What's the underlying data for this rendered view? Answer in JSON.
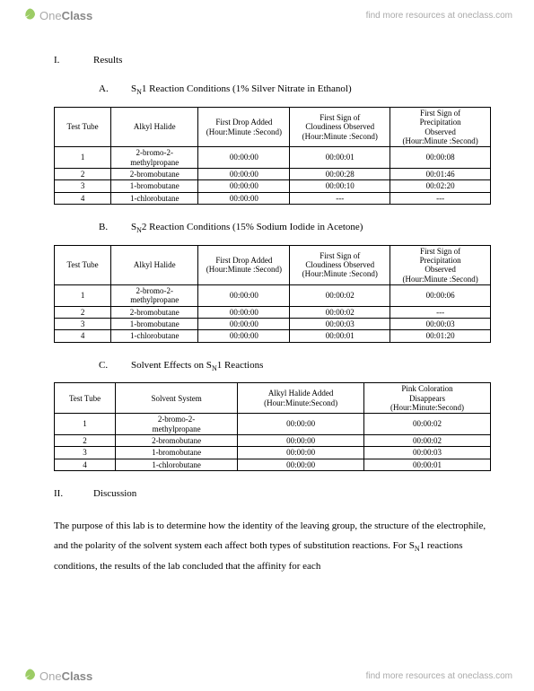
{
  "brand": {
    "name_light": "One",
    "name_bold": "Class",
    "tagline": "find more resources at oneclass.com"
  },
  "section1": {
    "marker": "I.",
    "title": "Results",
    "A": {
      "marker": "A.",
      "title": "S",
      "title_sub": "N",
      "title_rest": "1 Reaction Conditions (1% Silver Nitrate in Ethanol)",
      "headers": [
        "Test Tube",
        "Alkyl Halide",
        "First Drop Added\n(Hour:Minute :Second)",
        "First Sign of\nCloudiness Observed\n(Hour:Minute :Second)",
        "First Sign of\nPrecipitation\nObserved\n(Hour:Minute :Second)"
      ],
      "rows": [
        [
          "1",
          "2-bromo-2-\nmethylpropane",
          "00:00:00",
          "00:00:01",
          "00:00:08"
        ],
        [
          "2",
          "2-bromobutane",
          "00:00:00",
          "00:00:28",
          "00:01:46"
        ],
        [
          "3",
          "1-bromobutane",
          "00:00:00",
          "00:00:10",
          "00:02:20"
        ],
        [
          "4",
          "1-chlorobutane",
          "00:00:00",
          "---",
          "---"
        ]
      ]
    },
    "B": {
      "marker": "B.",
      "title": "S",
      "title_sub": "N",
      "title_rest": "2 Reaction Conditions (15% Sodium Iodide in Acetone)",
      "headers": [
        "Test Tube",
        "Alkyl Halide",
        "First Drop Added\n(Hour:Minute :Second)",
        "First Sign of\nCloudiness Observed\n(Hour:Minute :Second)",
        "First Sign of\nPrecipitation\nObserved\n(Hour:Minute :Second)"
      ],
      "rows": [
        [
          "1",
          "2-bromo-2-\nmethylpropane",
          "00:00:00",
          "00:00:02",
          "00:00:06"
        ],
        [
          "2",
          "2-bromobutane",
          "00:00:00",
          "00:00:02",
          "---"
        ],
        [
          "3",
          "1-bromobutane",
          "00:00:00",
          "00:00:03",
          "00:00:03"
        ],
        [
          "4",
          "1-chlorobutane",
          "00:00:00",
          "00:00:01",
          "00:01:20"
        ]
      ]
    },
    "C": {
      "marker": "C.",
      "title": "Solvent Effects on S",
      "title_sub": "N",
      "title_rest": "1 Reactions",
      "headers": [
        "Test Tube",
        "Solvent System",
        "Alkyl Halide Added\n(Hour:Minute:Second)",
        "Pink Coloration\nDisappears\n(Hour:Minute:Second)"
      ],
      "rows": [
        [
          "1",
          "2-bromo-2-\nmethylpropane",
          "00:00:00",
          "00:00:02"
        ],
        [
          "2",
          "2-bromobutane",
          "00:00:00",
          "00:00:02"
        ],
        [
          "3",
          "1-bromobutane",
          "00:00:00",
          "00:00:03"
        ],
        [
          "4",
          "1-chlorobutane",
          "00:00:00",
          "00:00:01"
        ]
      ]
    }
  },
  "section2": {
    "marker": "II.",
    "title": "Discussion",
    "para": "The purpose of this lab is to determine how the identity of the leaving group, the structure of the electrophile, and the polarity of the solvent system each affect both types of substitution reactions. For S",
    "para_sub": "N",
    "para_rest": "1 reactions conditions, the results of the lab concluded that the affinity for each"
  }
}
